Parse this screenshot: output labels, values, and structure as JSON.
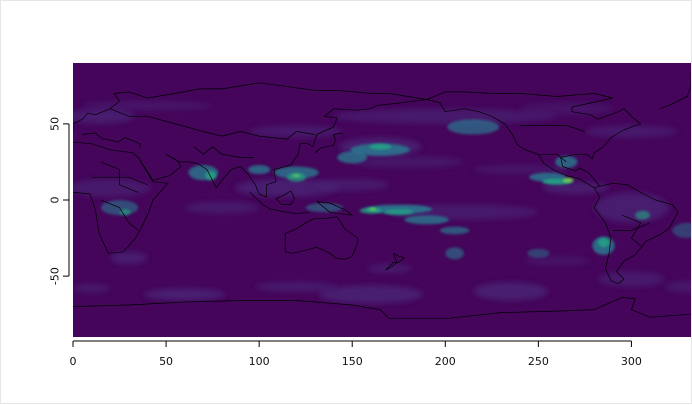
{
  "chart_data": {
    "type": "heatmap",
    "title": "",
    "xlabel": "",
    "ylabel": "",
    "xlim": [
      0,
      332
    ],
    "ylim": [
      -90,
      90
    ],
    "x_ticks": [
      {
        "value": 0,
        "label": "0"
      },
      {
        "value": 50,
        "label": "50"
      },
      {
        "value": 100,
        "label": "100"
      },
      {
        "value": 150,
        "label": "150"
      },
      {
        "value": 200,
        "label": "200"
      },
      {
        "value": 250,
        "label": "250"
      },
      {
        "value": 300,
        "label": "300"
      }
    ],
    "y_ticks": [
      {
        "value": 50,
        "label": "50"
      },
      {
        "value": 0,
        "label": "0"
      },
      {
        "value": -50,
        "label": "-50"
      }
    ],
    "colors": {
      "background": "#44055a",
      "low": "#482173",
      "mid": "#2a788e",
      "high": "#22a884",
      "peak": "#7ad151",
      "coastline": "#000000"
    }
  }
}
